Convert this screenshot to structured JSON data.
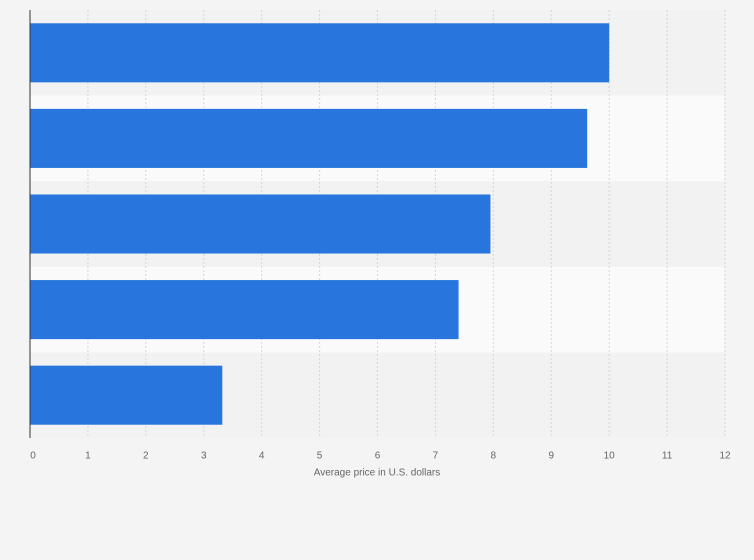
{
  "chart_data": {
    "type": "bar",
    "orientation": "horizontal",
    "categories": [
      null,
      null,
      null,
      null,
      null
    ],
    "values": [
      10.0,
      9.62,
      7.95,
      7.4,
      3.32
    ],
    "color": "#2876dd",
    "xlabel": "Average price in U.S. dollars",
    "xlim": [
      0,
      12
    ],
    "xticks": [
      0,
      1,
      2,
      3,
      4,
      5,
      6,
      7,
      8,
      9,
      10,
      11,
      12
    ],
    "grid": true
  }
}
